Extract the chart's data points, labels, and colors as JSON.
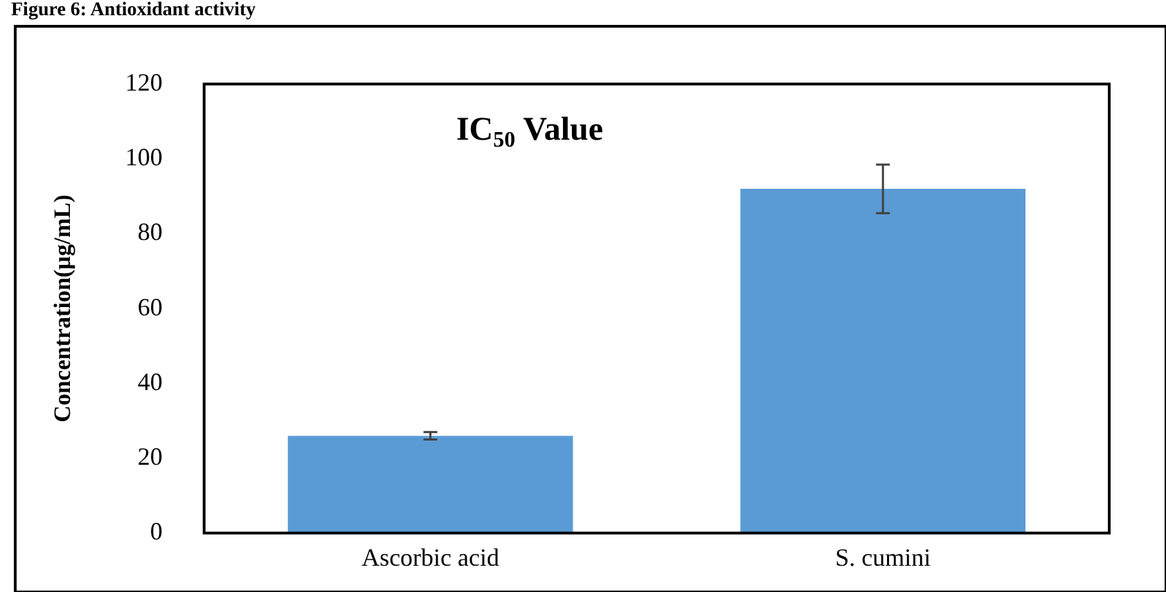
{
  "chart_data": {
    "type": "bar",
    "title": "IC$_{50}$ Value",
    "ylabel": "Concentration(µg/mL)",
    "annotations": [
      "Figure 6: Antioxidant activity"
    ],
    "categories": [
      "Ascorbic acid",
      "S. cumini"
    ],
    "values": [
      26,
      92
    ],
    "errors": [
      1,
      6.5
    ],
    "color": "#5b9bd5",
    "ylim": [
      0,
      120
    ],
    "yticks": [
      0,
      20,
      40,
      60,
      80,
      100,
      120
    ],
    "grid": false,
    "legend": false
  }
}
